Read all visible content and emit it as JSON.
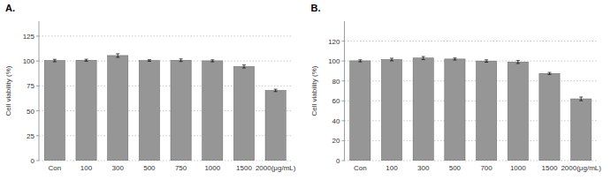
{
  "chart_data": [
    {
      "type": "bar",
      "title": "A.",
      "categories": [
        "Con",
        "100",
        "300",
        "500",
        "750",
        "1000",
        "1500",
        "2000(μg/mL)"
      ],
      "values": [
        100.5,
        100.8,
        105.5,
        100.5,
        100.8,
        100.2,
        94.5,
        70.5
      ],
      "errors": [
        1.2,
        1.0,
        1.8,
        0.8,
        1.3,
        1.0,
        1.5,
        1.2
      ],
      "ylabel": "Cell viability (%)",
      "ylim": [
        0,
        140
      ],
      "yticks": [
        0,
        25,
        50,
        75,
        100,
        125
      ],
      "color": "#969696",
      "grid": true
    },
    {
      "type": "bar",
      "title": "B.",
      "categories": [
        "Con",
        "100",
        "300",
        "500",
        "700",
        "1000",
        "1500",
        "2000(μg/mL)"
      ],
      "values": [
        100.2,
        101.5,
        103.0,
        102.0,
        100.0,
        99.0,
        87.5,
        62.0
      ],
      "errors": [
        1.0,
        1.3,
        1.5,
        1.0,
        1.2,
        1.5,
        1.0,
        1.8
      ],
      "ylabel": "Cell viability (%)",
      "ylim": [
        0,
        140
      ],
      "yticks": [
        0,
        20,
        40,
        60,
        80,
        100,
        120
      ],
      "color": "#969696",
      "grid": true
    }
  ]
}
